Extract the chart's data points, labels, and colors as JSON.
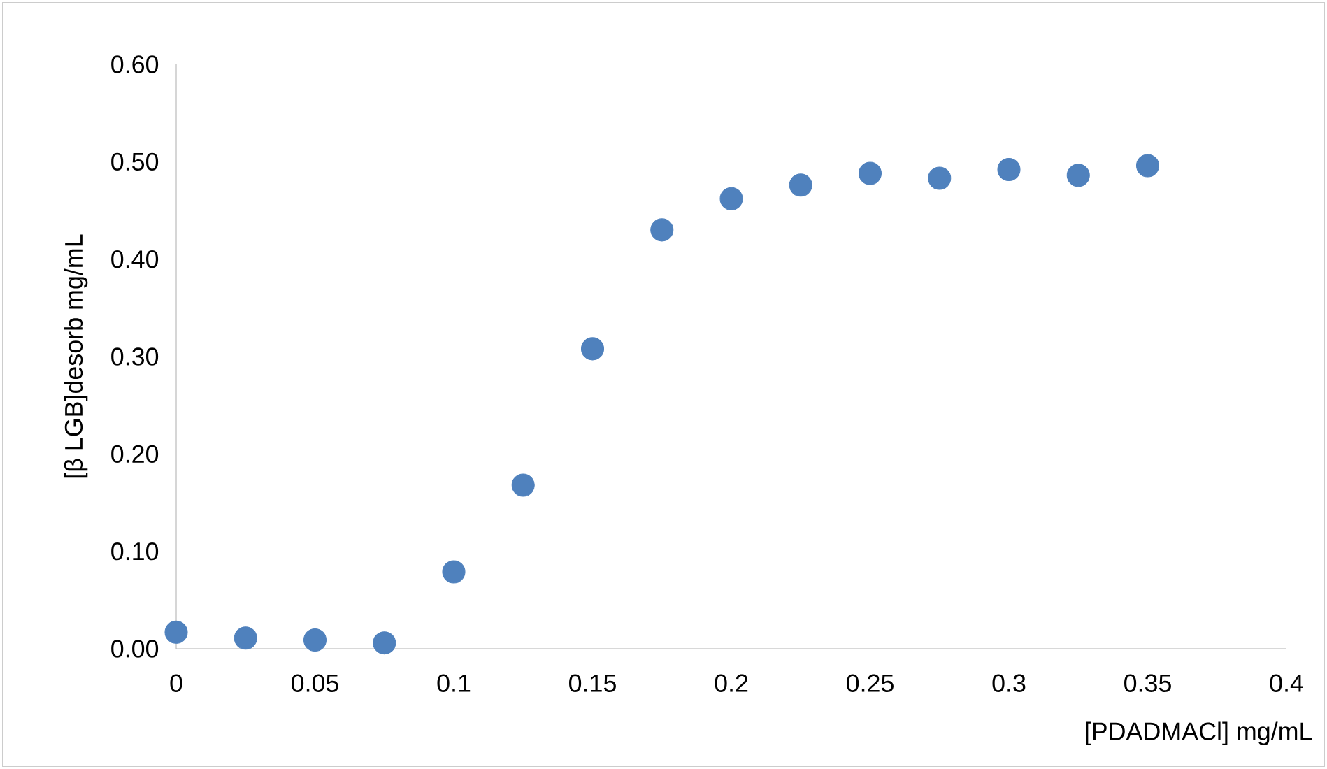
{
  "chart_data": {
    "type": "scatter",
    "xlabel": "[PDADMACl] mg/mL",
    "ylabel": "[β LGB]desorb  mg/mL",
    "x": [
      0,
      0.025,
      0.05,
      0.075,
      0.1,
      0.125,
      0.15,
      0.175,
      0.2,
      0.225,
      0.25,
      0.275,
      0.3,
      0.325,
      0.35
    ],
    "series": [
      {
        "color": "#4f81bd",
        "values": [
          0.017,
          0.011,
          0.009,
          0.006,
          0.079,
          0.168,
          0.308,
          0.43,
          0.462,
          0.476,
          0.488,
          0.483,
          0.492,
          0.486,
          0.496
        ]
      }
    ],
    "xlim": [
      0,
      0.4
    ],
    "xticks": [
      0,
      0.05,
      0.1,
      0.15,
      0.2,
      0.25,
      0.3,
      0.35,
      0.4
    ],
    "ylim": [
      0,
      0.6
    ],
    "yticks": [
      {
        "value": 0,
        "label": "0.00"
      },
      {
        "value": 0.1,
        "label": "0.10"
      },
      {
        "value": 0.2,
        "label": "0.20"
      },
      {
        "value": 0.3,
        "label": "0.30"
      },
      {
        "value": 0.4,
        "label": "0.40"
      },
      {
        "value": 0.5,
        "label": "0.50"
      },
      {
        "value": 0.6,
        "label": "0.60"
      }
    ],
    "grid": false,
    "marker": "circle"
  }
}
